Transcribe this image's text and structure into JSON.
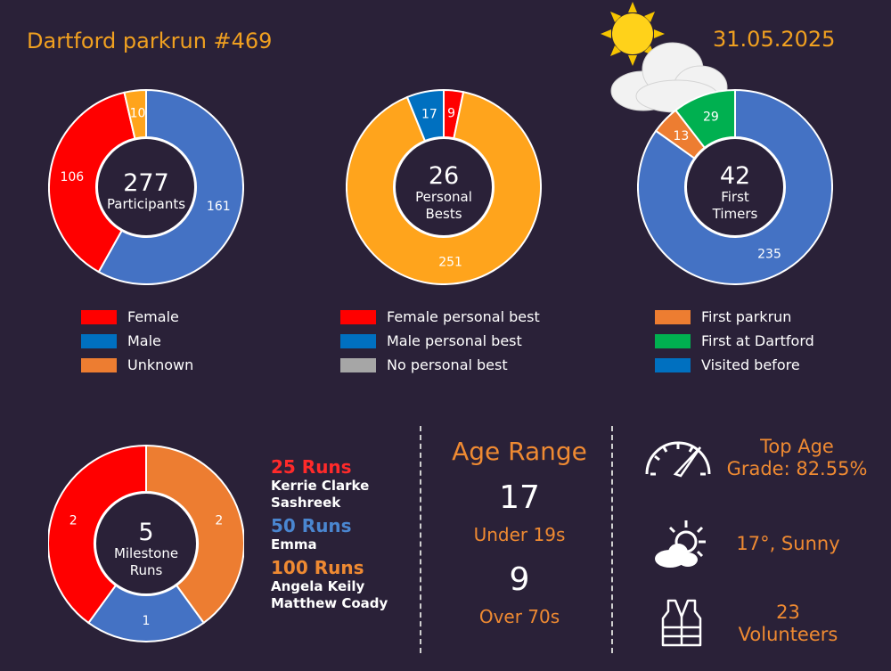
{
  "header": {
    "title": "Dartford parkrun #469",
    "date": "31.05.2025"
  },
  "colors": {
    "background": "#2a2138",
    "red": "#ff0000",
    "blue": "#4472c4",
    "orange": "#ffa41c",
    "dark_orange": "#ed7d31",
    "green": "#00b050",
    "legend_blue": "#0070c0",
    "grey": "#a6a6a6",
    "accent": "#ef8a32"
  },
  "icons": {
    "weather_banner": "sun-behind-cloud-icon",
    "gauge": "speedometer-icon",
    "sunny": "sun-cloud-icon",
    "volunteer": "hi-vis-vest-icon"
  },
  "chart_data": [
    {
      "type": "pie",
      "id": "participants",
      "center_value": "277",
      "center_label": [
        "Participants"
      ],
      "slices": [
        {
          "label": "Male",
          "value": 161,
          "color": "#4472c4"
        },
        {
          "label": "Female",
          "value": 106,
          "color": "#ff0000"
        },
        {
          "label": "Unknown",
          "value": 10,
          "color": "#ffa41c"
        }
      ],
      "legend": [
        {
          "label": "Female",
          "color": "#ff0000"
        },
        {
          "label": "Male",
          "color": "#0070c0"
        },
        {
          "label": "Unknown",
          "color": "#ed7d31"
        }
      ]
    },
    {
      "type": "pie",
      "id": "personal-bests",
      "center_value": "26",
      "center_label": [
        "Personal",
        "Bests"
      ],
      "slices": [
        {
          "label": "Female personal best",
          "value": 9,
          "color": "#ff0000"
        },
        {
          "label": "No personal best",
          "value": 251,
          "color": "#ffa41c"
        },
        {
          "label": "Male personal best",
          "value": 17,
          "color": "#0070c0"
        }
      ],
      "legend": [
        {
          "label": "Female personal best",
          "color": "#ff0000"
        },
        {
          "label": "Male personal best",
          "color": "#0070c0"
        },
        {
          "label": "No personal best",
          "color": "#a6a6a6"
        }
      ]
    },
    {
      "type": "pie",
      "id": "first-timers",
      "center_value": "42",
      "center_label": [
        "First",
        "Timers"
      ],
      "slices": [
        {
          "label": "Visited before",
          "value": 235,
          "color": "#4472c4"
        },
        {
          "label": "First parkrun",
          "value": 13,
          "color": "#ed7d31"
        },
        {
          "label": "First at Dartford",
          "value": 29,
          "color": "#00b050"
        }
      ],
      "legend": [
        {
          "label": "First parkrun",
          "color": "#ed7d31"
        },
        {
          "label": "First at Dartford",
          "color": "#00b050"
        },
        {
          "label": "Visited before",
          "color": "#0070c0"
        }
      ]
    },
    {
      "type": "pie",
      "id": "milestones",
      "center_value": "5",
      "center_label": [
        "Milestone",
        "Runs"
      ],
      "slices": [
        {
          "label": "100 Runs",
          "value": 2,
          "color": "#ed7d31"
        },
        {
          "label": "50 Runs",
          "value": 1,
          "color": "#4472c4"
        },
        {
          "label": "25 Runs",
          "value": 2,
          "color": "#ff0000"
        }
      ]
    }
  ],
  "milestones": [
    {
      "heading": "25 Runs",
      "color": "#ff2a2a",
      "names": [
        "Kerrie Clarke",
        "Sashreek"
      ]
    },
    {
      "heading": "50 Runs",
      "color": "#4a86d0",
      "names": [
        "Emma"
      ]
    },
    {
      "heading": "100 Runs",
      "color": "#ef8a32",
      "names": [
        "Angela Keily",
        "Matthew Coady"
      ]
    }
  ],
  "age_range": {
    "title": "Age Range",
    "under_value": "17",
    "under_label": "Under 19s",
    "over_value": "9",
    "over_label": "Over 70s"
  },
  "stats": {
    "top_age_grade": [
      "Top Age",
      "Grade: 82.55%"
    ],
    "weather": "17°, Sunny",
    "volunteers_value": "23",
    "volunteers_label": "Volunteers"
  }
}
